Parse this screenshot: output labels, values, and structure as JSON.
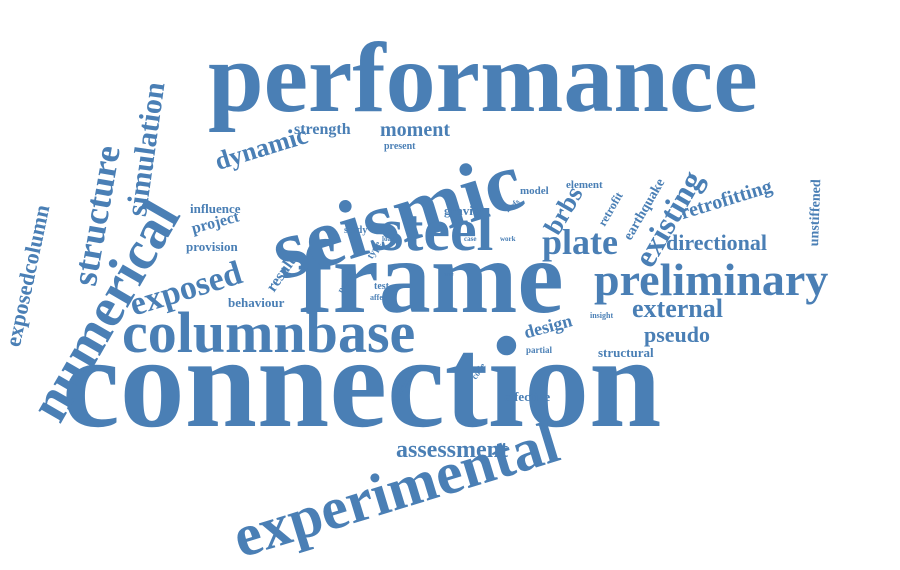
{
  "color": "#4a7fb5",
  "words": [
    {
      "text": "performance"
    },
    {
      "text": "connection"
    },
    {
      "text": "frame"
    },
    {
      "text": "seismic"
    },
    {
      "text": "experimental"
    },
    {
      "text": "columnbase"
    },
    {
      "text": "numerical"
    },
    {
      "text": "steel"
    },
    {
      "text": "preliminary"
    },
    {
      "text": "structure"
    },
    {
      "text": "simulation"
    },
    {
      "text": "exposed"
    },
    {
      "text": "existing"
    },
    {
      "text": "plate"
    },
    {
      "text": "exposedcolumn"
    },
    {
      "text": "assessment"
    },
    {
      "text": "dynamic"
    },
    {
      "text": "external"
    },
    {
      "text": "directional"
    },
    {
      "text": "retrofitting"
    },
    {
      "text": "pseudo"
    },
    {
      "text": "brbs"
    },
    {
      "text": "moment"
    },
    {
      "text": "design"
    },
    {
      "text": "strength"
    },
    {
      "text": "project"
    },
    {
      "text": "result"
    },
    {
      "text": "earthquake"
    },
    {
      "text": "unstiffened"
    },
    {
      "text": "effective"
    },
    {
      "text": "structural"
    },
    {
      "text": "retrofit"
    },
    {
      "text": "influence"
    },
    {
      "text": "behaviour"
    },
    {
      "text": "provision"
    },
    {
      "text": "gravity"
    },
    {
      "text": "element"
    },
    {
      "text": "model"
    },
    {
      "text": "present"
    },
    {
      "text": "study"
    },
    {
      "text": "type"
    },
    {
      "text": "paper"
    },
    {
      "text": "test"
    },
    {
      "text": "affect"
    },
    {
      "text": "insight"
    },
    {
      "text": "code"
    },
    {
      "text": "current"
    },
    {
      "text": "partial"
    },
    {
      "text": "mrfs"
    },
    {
      "text": "load"
    },
    {
      "text": "case"
    },
    {
      "text": "work"
    },
    {
      "text": "erie"
    }
  ]
}
